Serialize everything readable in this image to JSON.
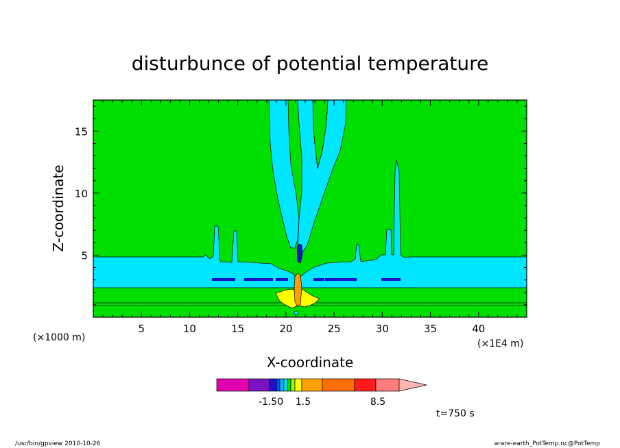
{
  "chart_data": {
    "type": "heatmap",
    "title": "disturbunce of potential temperature",
    "xlabel": "X-coordinate",
    "ylabel": "Z-coordinate",
    "x_unit": "(×1000 m)",
    "x_scale_note": "(×1E4 m)",
    "xlim": [
      0,
      45
    ],
    "ylim": [
      0,
      17.5
    ],
    "x_ticks": [
      5,
      10,
      15,
      20,
      25,
      30,
      35,
      40
    ],
    "y_ticks": [
      5,
      10,
      15
    ],
    "background_color": "#00e000",
    "colorbar": {
      "colors": [
        "#e000b0",
        "#7a14c0",
        "#1e12c8",
        "#0050ff",
        "#00b4ff",
        "#00e6ff",
        "#00e000",
        "#a8f000",
        "#ffff00",
        "#ffa000",
        "#ff6c00",
        "#ff1c1c",
        "#ff7c7c",
        "#ffb4b4"
      ],
      "labels": [
        {
          "text": "-1.50",
          "value": -1.5
        },
        {
          "text": "1.5",
          "value": 1.5
        },
        {
          "text": "8.5",
          "value": 8.5
        }
      ]
    },
    "annotation": "t=750 s"
  },
  "footer": {
    "left": "/usr/bin/gpview   2010-10-26",
    "right": "arare-earth_PotTemp.nc@PotTemp"
  }
}
